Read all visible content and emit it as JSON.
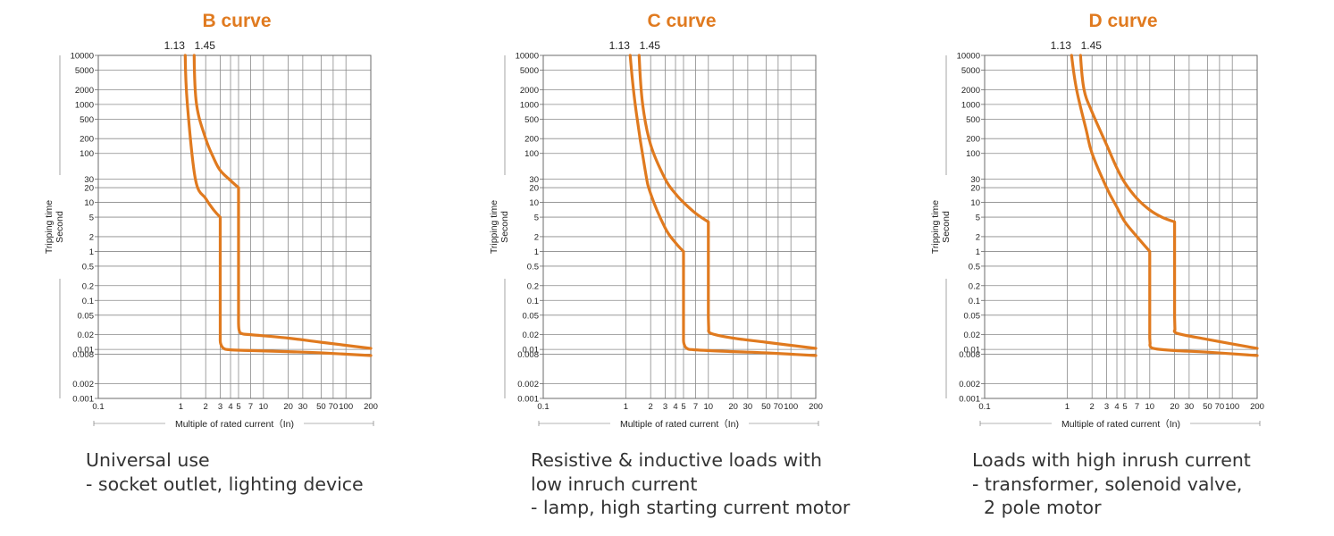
{
  "colors": {
    "curve": "#e07a1f",
    "title": "#e07a1f",
    "grid": "#8a8a8a",
    "frame": "#6b6b6b",
    "text": "#222222"
  },
  "chart_data": [
    {
      "type": "line",
      "title": "B curve",
      "ylabel": "Tripping time",
      "ylabel_sub": "Second",
      "xlabel": "Multiple of rated current（In)",
      "top_labels": [
        "1.13",
        "1.45"
      ],
      "x_scale": "log",
      "y_scale": "log",
      "xlim": [
        0.1,
        200
      ],
      "ylim": [
        0.001,
        10000
      ],
      "x_ticks": [
        "0.1",
        "1",
        "2",
        "3",
        "4",
        "5",
        "7",
        "10",
        "20",
        "30",
        "50",
        "70",
        "100",
        "200"
      ],
      "y_ticks": [
        "10000",
        "5000",
        "2000",
        "1000",
        "500",
        "200",
        "100",
        "30",
        "20",
        "10",
        "5",
        "2",
        "1",
        "0.5",
        "0.2",
        "0.1",
        "0.05",
        "0.02",
        "0.01",
        "0.008",
        "0.002",
        "0.001"
      ],
      "grid": true,
      "series": [
        {
          "x": [
            1.13,
            1.2,
            1.5,
            2,
            2.5,
            3,
            3,
            3.04,
            3.3,
            4,
            7,
            20,
            50,
            200
          ],
          "y": [
            10000,
            1000,
            30,
            12,
            7,
            5,
            0.017,
            0.013,
            0.0105,
            0.0098,
            0.0095,
            0.009,
            0.0085,
            0.0075
          ]
        },
        {
          "x": [
            1.45,
            1.55,
            2,
            2.5,
            3,
            4,
            5,
            5,
            5.07,
            5.5,
            7,
            20,
            50,
            200
          ],
          "y": [
            10000,
            1000,
            200,
            80,
            45,
            28,
            20,
            0.045,
            0.025,
            0.021,
            0.02,
            0.017,
            0.014,
            0.0105
          ]
        }
      ],
      "description": [
        "Universal use",
        "- socket outlet, lighting device"
      ]
    },
    {
      "type": "line",
      "title": "C curve",
      "ylabel": "Tripping time",
      "ylabel_sub": "Second",
      "xlabel": "Multiple of rated current（In)",
      "top_labels": [
        "1.13",
        "1.45"
      ],
      "x_scale": "log",
      "y_scale": "log",
      "xlim": [
        0.1,
        200
      ],
      "ylim": [
        0.001,
        10000
      ],
      "x_ticks": [
        "0.1",
        "1",
        "2",
        "3",
        "4",
        "5",
        "7",
        "10",
        "20",
        "30",
        "50",
        "70",
        "100",
        "200"
      ],
      "y_ticks": [
        "10000",
        "5000",
        "2000",
        "1000",
        "500",
        "200",
        "100",
        "30",
        "20",
        "10",
        "5",
        "2",
        "1",
        "0.5",
        "0.2",
        "0.1",
        "0.05",
        "0.02",
        "0.01",
        "0.008",
        "0.002",
        "0.001"
      ],
      "grid": true,
      "series": [
        {
          "x": [
            1.13,
            1.3,
            1.7,
            2,
            3,
            4,
            5,
            5,
            5.07,
            5.5,
            7,
            20,
            50,
            200
          ],
          "y": [
            10000,
            1000,
            50,
            15,
            3,
            1.5,
            1,
            0.017,
            0.013,
            0.0105,
            0.0098,
            0.009,
            0.0085,
            0.0075
          ]
        },
        {
          "x": [
            1.45,
            1.6,
            2,
            3,
            4,
            5,
            7,
            10,
            10,
            10.1,
            11,
            20,
            50,
            200
          ],
          "y": [
            10000,
            1000,
            150,
            30,
            15,
            10,
            6,
            4,
            0.045,
            0.025,
            0.021,
            0.017,
            0.014,
            0.0105
          ]
        }
      ],
      "description": [
        "Resistive & inductive loads with",
        "low inruch current",
        "- lamp, high starting current motor"
      ]
    },
    {
      "type": "line",
      "title": "D curve",
      "ylabel": "Tripping time",
      "ylabel_sub": "Second",
      "xlabel": "Multiple of rated current（In)",
      "top_labels": [
        "1.13",
        "1.45"
      ],
      "x_scale": "log",
      "y_scale": "log",
      "xlim": [
        0.1,
        200
      ],
      "ylim": [
        0.001,
        10000
      ],
      "x_ticks": [
        "0.1",
        "1",
        "2",
        "3",
        "4",
        "5",
        "7",
        "10",
        "20",
        "30",
        "50",
        "70",
        "100",
        "200"
      ],
      "y_ticks": [
        "10000",
        "5000",
        "2000",
        "1000",
        "500",
        "200",
        "100",
        "30",
        "20",
        "10",
        "5",
        "2",
        "1",
        "0.5",
        "0.2",
        "0.1",
        "0.05",
        "0.02",
        "0.01",
        "0.008",
        "0.002",
        "0.001"
      ],
      "grid": true,
      "series": [
        {
          "x": [
            1.13,
            1.3,
            1.7,
            2,
            3,
            4,
            5,
            7,
            10,
            10,
            10.1,
            11,
            20,
            50,
            200
          ],
          "y": [
            10000,
            2000,
            300,
            100,
            20,
            8,
            4,
            2,
            1,
            0.017,
            0.013,
            0.0105,
            0.0095,
            0.0088,
            0.0075
          ]
        },
        {
          "x": [
            1.45,
            1.6,
            2,
            3,
            4,
            5,
            7,
            10,
            14,
            20,
            20,
            20.2,
            22,
            50,
            200
          ],
          "y": [
            10000,
            2000,
            700,
            150,
            50,
            25,
            12,
            7,
            5,
            4,
            0.045,
            0.025,
            0.021,
            0.016,
            0.0105
          ]
        }
      ],
      "description": [
        "Loads with high inrush current",
        "- transformer, solenoid valve,",
        "  2 pole motor"
      ]
    }
  ]
}
